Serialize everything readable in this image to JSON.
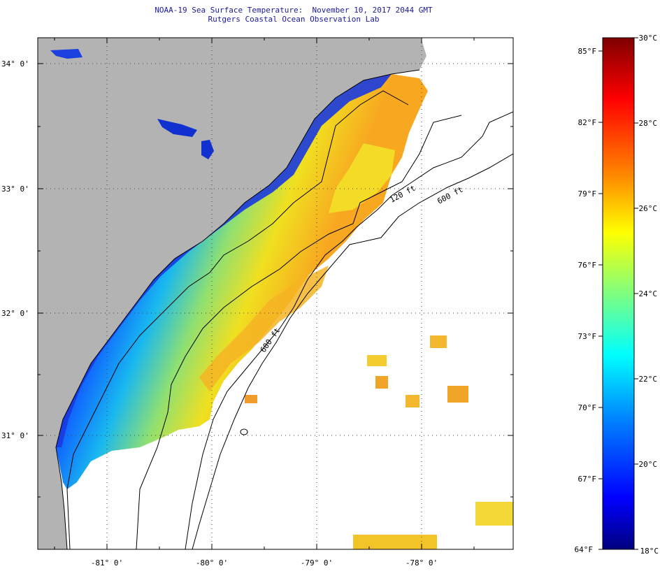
{
  "title": {
    "line1": "NOAA-19 Sea Surface Temperature:  November 10, 2017 2044 GMT",
    "line2": "Rutgers Coastal Ocean Observation Lab"
  },
  "axes": {
    "latitude_labels": [
      "34° 0'",
      "33° 0'",
      "32° 0'",
      "31° 0'"
    ],
    "longitude_labels": [
      "-81° 0'",
      "-80° 0'",
      "-79° 0'",
      "-78° 0'"
    ]
  },
  "isobaths": [
    {
      "label": "120 ft"
    },
    {
      "label": "600 ft"
    },
    {
      "label": "600 ft"
    }
  ],
  "colorbar": {
    "fahrenheit_labels": [
      "85°F",
      "82°F",
      "79°F",
      "76°F",
      "73°F",
      "70°F",
      "67°F",
      "64°F"
    ],
    "celsius_labels": [
      "30°C",
      "28°C",
      "26°C",
      "24°C",
      "22°C",
      "20°C",
      "18°C"
    ],
    "range_celsius": [
      18,
      30
    ],
    "range_fahrenheit": [
      64,
      86
    ]
  },
  "colors": {
    "land": "#b3b3b3",
    "title_text": "#1a1a9a",
    "sst_scale": [
      "#00007f",
      "#0000ff",
      "#007fff",
      "#00ffff",
      "#7fff7f",
      "#ffff00",
      "#ff7f00",
      "#ff0000",
      "#7f0000"
    ]
  }
}
